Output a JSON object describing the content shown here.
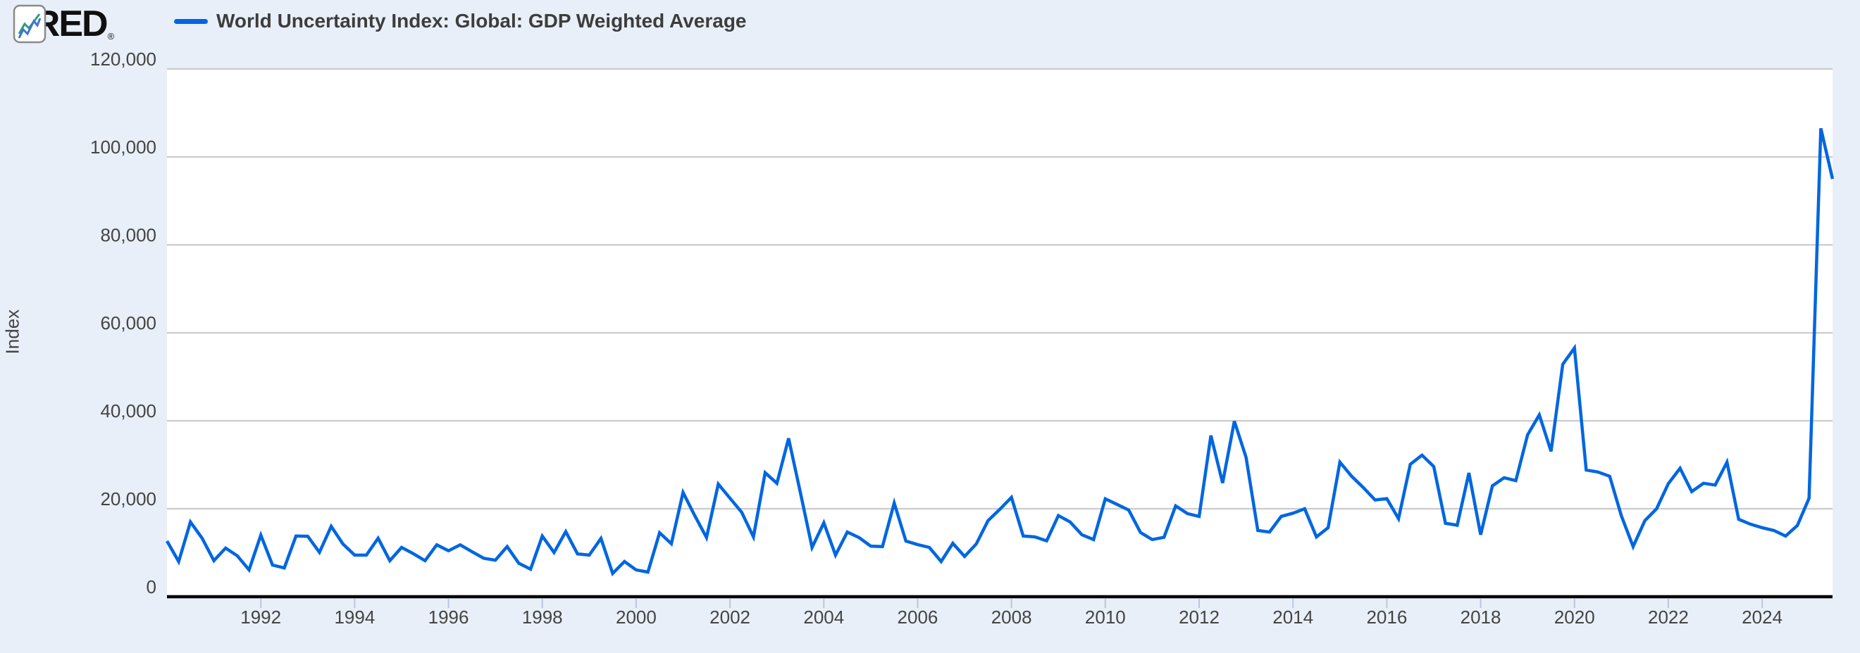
{
  "header": {
    "logo_text": "FRED",
    "registered_mark": "®",
    "legend": {
      "label": "World Uncertainty Index: Global: GDP Weighted Average"
    }
  },
  "colors": {
    "page_background": "#e9eff8",
    "plot_background": "#ffffff",
    "line": "#0066e0",
    "gridline": "#cccccc",
    "axis": "#000000",
    "tick": "#b9c6dd",
    "label_text": "#444444",
    "legend_text": "#3d3d3d",
    "logo_text": "#101010",
    "logo_icon_blue": "#3c72d9",
    "logo_icon_green": "#2f9e77",
    "logo_icon_border": "#8a8a8a"
  },
  "y_axis": {
    "title": "Index",
    "tick_labels": [
      "120,000",
      "100,000",
      "80,000",
      "60,000",
      "40,000",
      "20,000",
      "0"
    ],
    "tick_values": [
      120000,
      100000,
      80000,
      60000,
      40000,
      20000,
      0
    ],
    "min": 0,
    "max": 120000
  },
  "x_axis": {
    "tick_labels": [
      "1992",
      "1994",
      "1996",
      "1998",
      "2000",
      "2002",
      "2004",
      "2006",
      "2008",
      "2010",
      "2012",
      "2014",
      "2016",
      "2018",
      "2020",
      "2022",
      "2024"
    ],
    "tick_years": [
      1992,
      1994,
      1996,
      1998,
      2000,
      2002,
      2004,
      2006,
      2008,
      2010,
      2012,
      2014,
      2016,
      2018,
      2020,
      2022,
      2024
    ],
    "range_start": 1990.0,
    "range_end": 2025.5
  },
  "chart_data": {
    "type": "line",
    "title": "World Uncertainty Index: Global: GDP Weighted Average",
    "xlabel": "",
    "ylabel": "Index",
    "ylim": [
      0,
      120000
    ],
    "x_start_quarter": "1990 Q1",
    "x_end_quarter": "2025 Q3",
    "x_step_years": 0.25,
    "grid": "horizontal-only",
    "legend_position": "top-left",
    "series": [
      {
        "name": "World Uncertainty Index: Global: GDP Weighted Average",
        "values": [
          12650,
          8000,
          17000,
          13300,
          8200,
          11050,
          9300,
          6100,
          14000,
          7200,
          6550,
          13800,
          13750,
          10100,
          16000,
          12000,
          9450,
          9450,
          13300,
          8200,
          11200,
          9800,
          8200,
          11800,
          10450,
          11800,
          10250,
          8750,
          8300,
          11400,
          7600,
          6250,
          13800,
          10050,
          14800,
          9750,
          9450,
          13250,
          5300,
          8000,
          6100,
          5600,
          14550,
          12050,
          23700,
          18400,
          13450,
          25600,
          22400,
          19200,
          13600,
          28200,
          25800,
          36000,
          23700,
          11200,
          16800,
          9450,
          14700,
          13450,
          11500,
          11400,
          21300,
          12650,
          11850,
          11200,
          8000,
          12150,
          9150,
          12000,
          17300,
          19850,
          22600,
          13800,
          13600,
          12700,
          18450,
          17000,
          14100,
          13000,
          22250,
          21000,
          19700,
          14600,
          13000,
          13500,
          20650,
          18900,
          18250,
          36650,
          25850,
          39900,
          31700,
          15050,
          14700,
          18250,
          19000,
          20000,
          13600,
          15700,
          30600,
          27400,
          24800,
          22000,
          22300,
          17750,
          30100,
          32200,
          29600,
          16700,
          16250,
          28150,
          14100,
          25200,
          27050,
          26400,
          36800,
          41350,
          33050,
          52850,
          56550,
          28800,
          28350,
          27400,
          18400,
          11400,
          17300,
          20000,
          25700,
          29200,
          23900,
          25800,
          25400,
          30600,
          17600,
          16500,
          15700,
          15050,
          13800,
          16200,
          22400,
          106500,
          95000
        ]
      }
    ]
  }
}
